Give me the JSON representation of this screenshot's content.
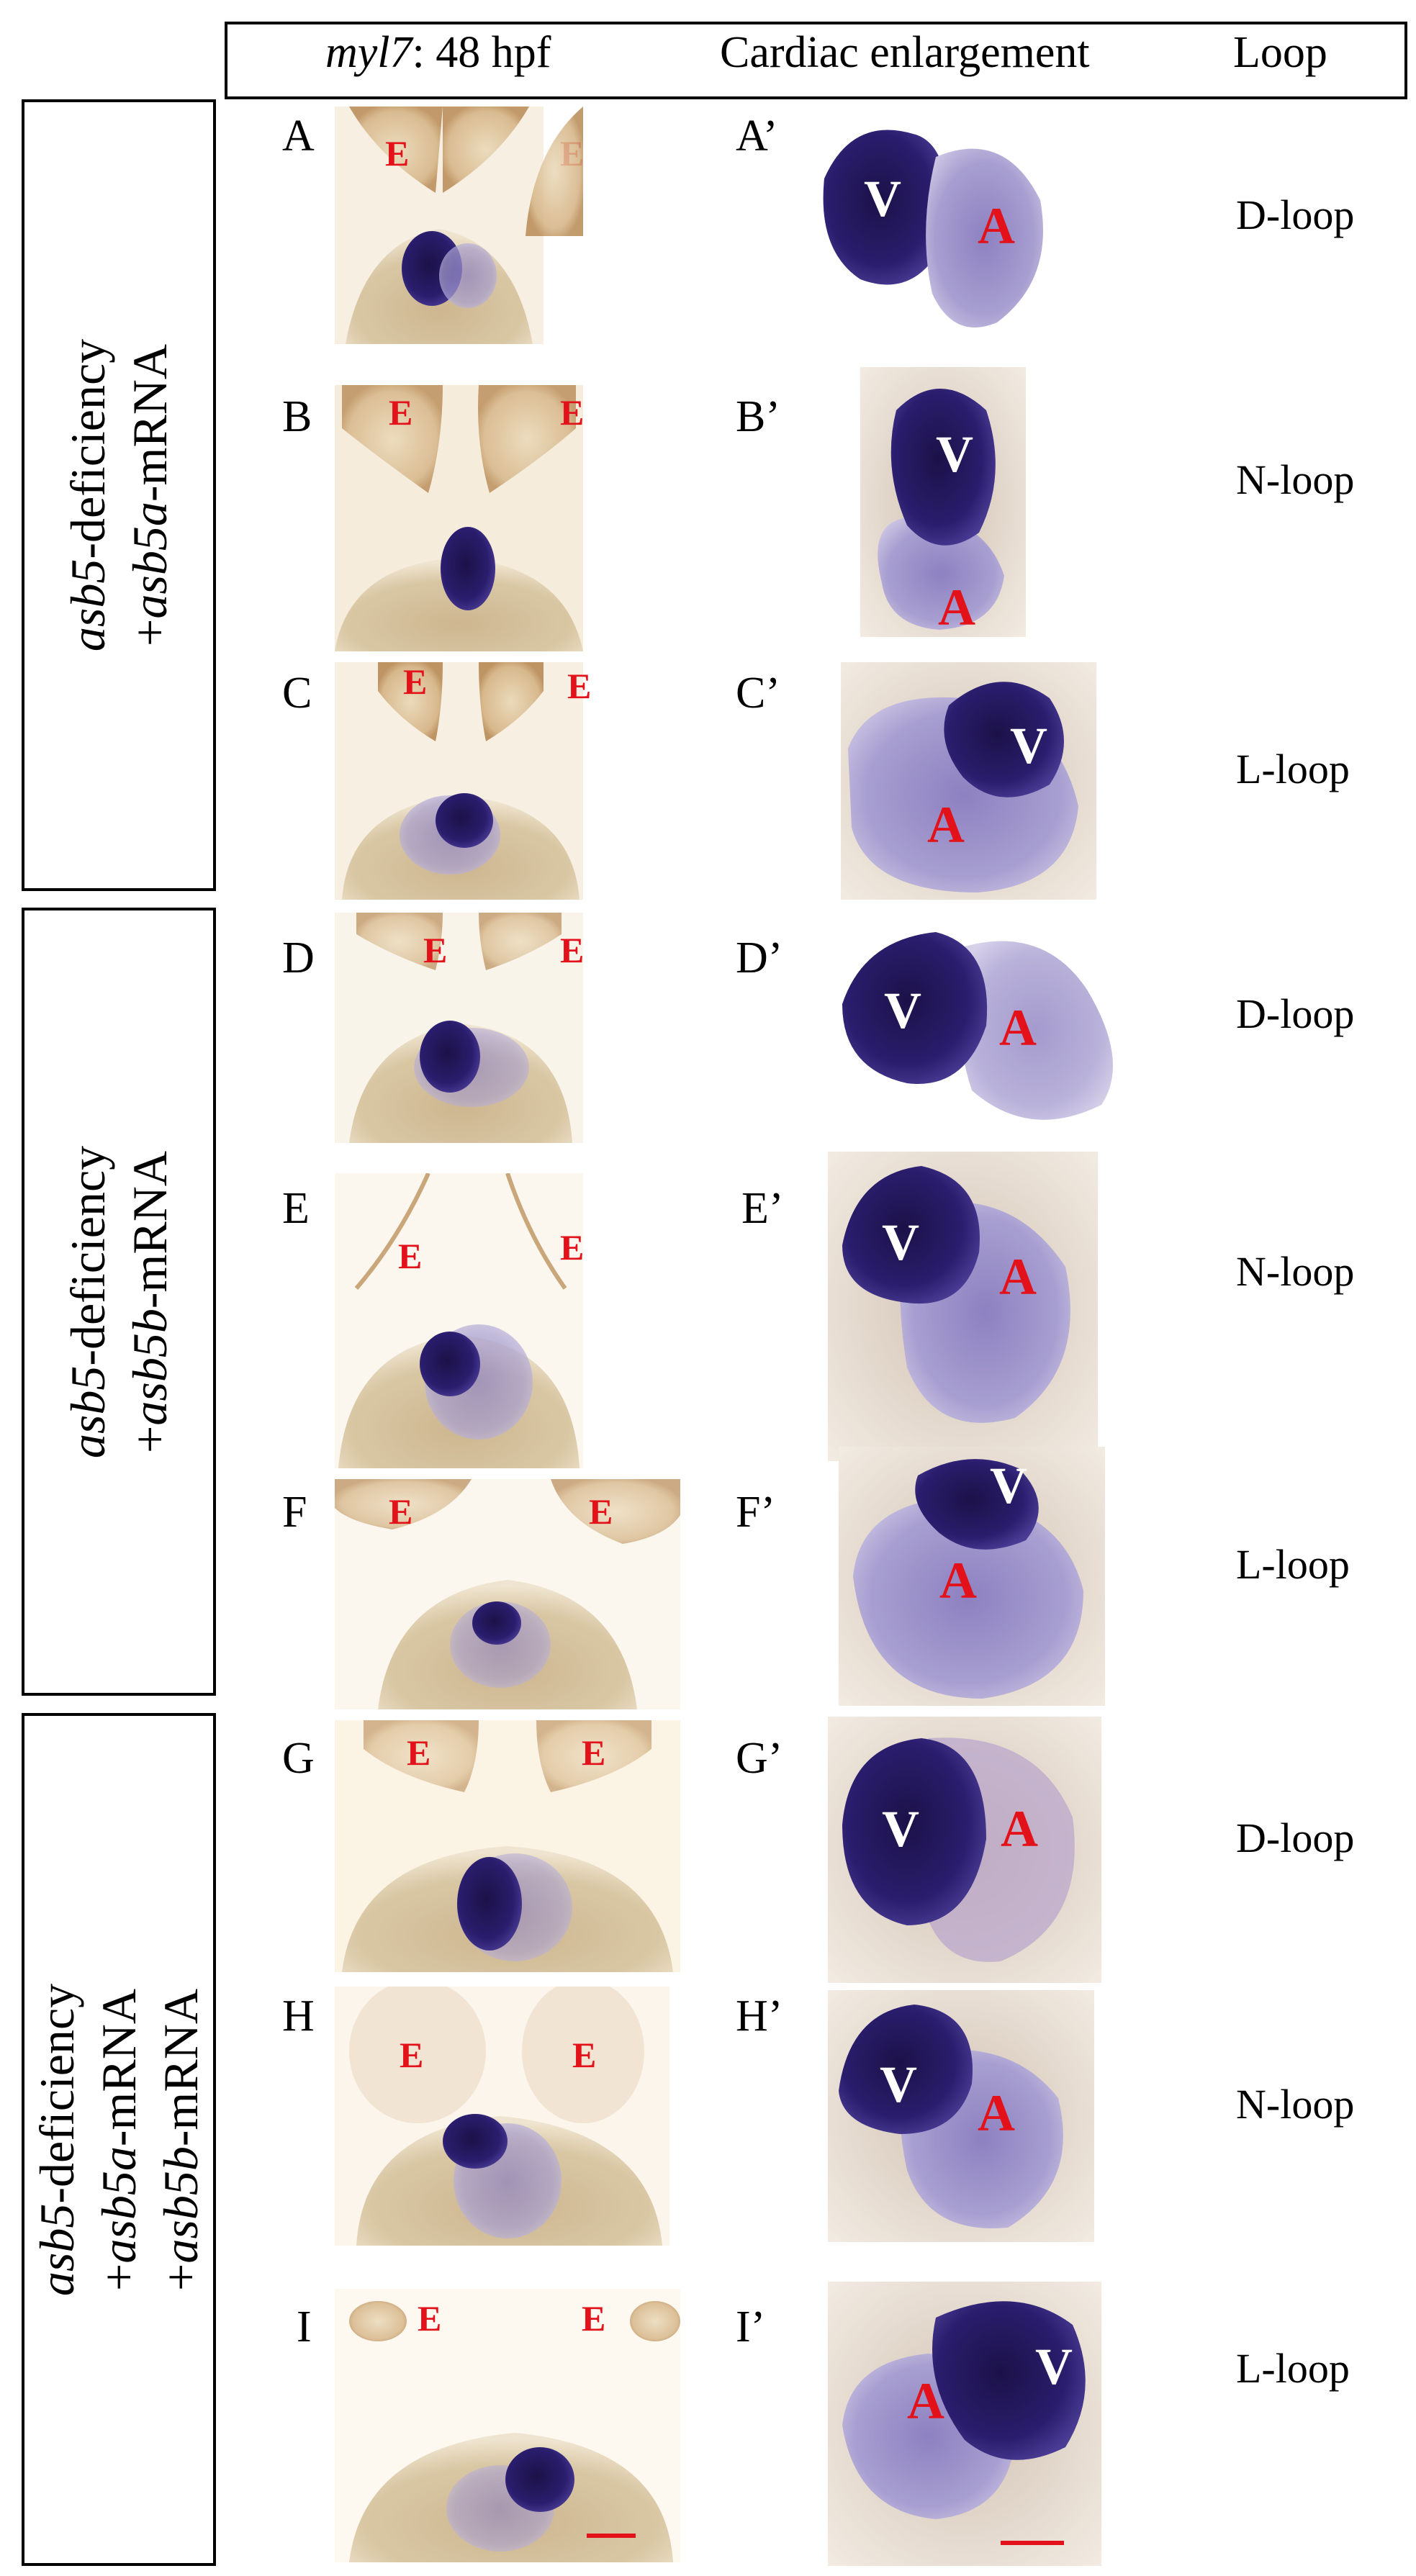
{
  "header": {
    "gene": "myl7",
    "stage": ": 48 hpf",
    "cardiac": "Cardiac enlargement",
    "loop": "Loop"
  },
  "groups": [
    {
      "gene": "asb5",
      "line1_rest": "-deficiency",
      "line2_prefix": "+",
      "mrna1": "asb5a",
      "line2_rest": "-mRNA"
    },
    {
      "gene": "asb5",
      "line1_rest": "-deficiency",
      "line2_prefix": "+",
      "mrna1": "asb5b",
      "line2_rest": "-mRNA"
    },
    {
      "gene": "asb5",
      "line1_rest": "-deficiency",
      "line2_prefix": "+",
      "mrna1": "asb5a",
      "line2_rest": "-mRNA",
      "line3_prefix": "+",
      "mrna2": "asb5b",
      "line3_rest": "-mRNA"
    }
  ],
  "panels": [
    {
      "letter": "A",
      "enlarged_letter": "A’",
      "loop": "D-loop"
    },
    {
      "letter": "B",
      "enlarged_letter": "B’",
      "loop": "N-loop"
    },
    {
      "letter": "C",
      "enlarged_letter": "C’",
      "loop": "L-loop"
    },
    {
      "letter": "D",
      "enlarged_letter": "D’",
      "loop": "D-loop"
    },
    {
      "letter": "E",
      "enlarged_letter": "E’",
      "loop": "N-loop"
    },
    {
      "letter": "F",
      "enlarged_letter": "F’",
      "loop": "L-loop"
    },
    {
      "letter": "G",
      "enlarged_letter": "G’",
      "loop": "D-loop"
    },
    {
      "letter": "H",
      "enlarged_letter": "H’",
      "loop": "N-loop"
    },
    {
      "letter": "I",
      "enlarged_letter": "I’",
      "loop": "L-loop"
    }
  ],
  "marks": {
    "eye": "E",
    "ventricle": "V",
    "atrium": "A"
  },
  "colors": {
    "label_red": "#e3121a",
    "stain_purple": "#2a1a6b",
    "tissue_tan": "#c9b48f",
    "background_cream": "#f4ead6"
  }
}
